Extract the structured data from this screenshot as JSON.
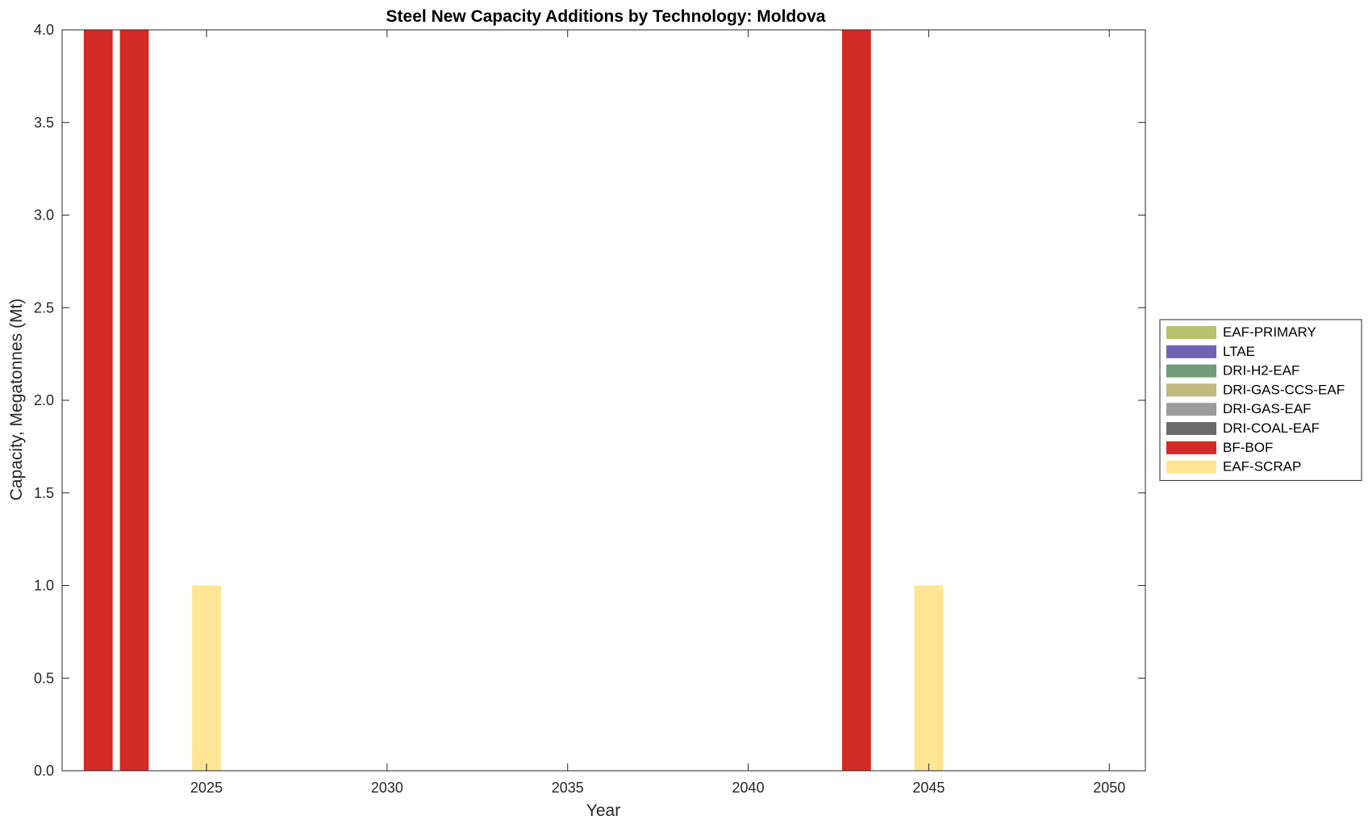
{
  "chart_data": {
    "type": "bar",
    "stacked": true,
    "title": "Steel New Capacity Additions by Technology: Moldova",
    "xlabel": "Year",
    "ylabel": "Capacity, Megatonnes (Mt)",
    "xlim": [
      2021,
      2051
    ],
    "ylim": [
      0,
      4
    ],
    "x_ticks": [
      2025,
      2030,
      2035,
      2040,
      2045,
      2050
    ],
    "y_ticks": [
      0,
      0.5,
      1,
      1.5,
      2,
      2.5,
      3,
      3.5,
      4
    ],
    "y_tick_labels": [
      "0.0",
      "0.5",
      "1.0",
      "1.5",
      "2.0",
      "2.5",
      "3.0",
      "3.5",
      "4.0"
    ],
    "grid": false,
    "legend_position": "outside-right",
    "series": [
      {
        "name": "EAF-PRIMARY",
        "color": "#b5c26a",
        "points": []
      },
      {
        "name": "LTAE",
        "color": "#7064b4",
        "points": []
      },
      {
        "name": "DRI-H2-EAF",
        "color": "#739a7b",
        "points": []
      },
      {
        "name": "DRI-GAS-CCS-EAF",
        "color": "#c2b97f",
        "points": []
      },
      {
        "name": "DRI-GAS-EAF",
        "color": "#9c9c9c",
        "points": []
      },
      {
        "name": "DRI-COAL-EAF",
        "color": "#6b6b6b",
        "points": []
      },
      {
        "name": "BF-BOF",
        "color": "#d32a26",
        "points": [
          {
            "x": 2022,
            "y": 4
          },
          {
            "x": 2023,
            "y": 4
          },
          {
            "x": 2043,
            "y": 4
          }
        ]
      },
      {
        "name": "EAF-SCRAP",
        "color": "#ffe594",
        "points": [
          {
            "x": 2025,
            "y": 1
          },
          {
            "x": 2045,
            "y": 1
          }
        ]
      }
    ]
  }
}
